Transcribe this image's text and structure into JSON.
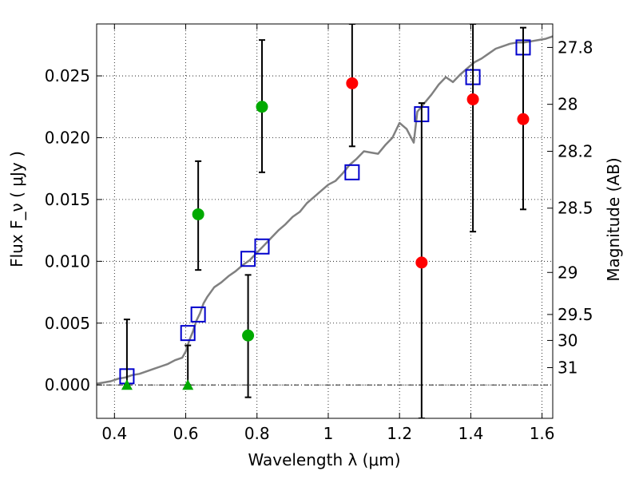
{
  "chart_data": {
    "type": "scatter",
    "xlabel": "Wavelength  λ (μm)",
    "ylabel": "Flux  F_ν  ( μJy )",
    "ylabel_right": "Magnitude (AB)",
    "xlim": [
      0.35,
      1.63
    ],
    "ylim": [
      -0.0027,
      0.0292
    ],
    "x_ticks": [
      0.4,
      0.6,
      0.8,
      1.0,
      1.2,
      1.4,
      1.6
    ],
    "x_tick_labels": [
      "0.4",
      "0.6",
      "0.8",
      "1",
      "1.2",
      "1.4",
      "1.6"
    ],
    "y_ticks": [
      0.0,
      0.005,
      0.01,
      0.015,
      0.02,
      0.025
    ],
    "y_tick_labels": [
      "0.000",
      "0.005",
      "0.010",
      "0.015",
      "0.020",
      "0.025"
    ],
    "right_ticks": [
      {
        "label": "27.8",
        "flux": 0.0273
      },
      {
        "label": "28",
        "flux": 0.0227
      },
      {
        "label": "28.2",
        "flux": 0.0189
      },
      {
        "label": "28.5",
        "flux": 0.0143
      },
      {
        "label": "29",
        "flux": 0.0091
      },
      {
        "label": "29.5",
        "flux": 0.0057
      },
      {
        "label": "30",
        "flux": 0.0036
      },
      {
        "label": "31",
        "flux": 0.0014
      }
    ],
    "grid": true,
    "zero_line": true,
    "series": [
      {
        "kind": "line",
        "color": "#808080",
        "x": [
          0.35,
          0.37,
          0.39,
          0.41,
          0.43,
          0.45,
          0.47,
          0.49,
          0.51,
          0.53,
          0.55,
          0.57,
          0.59,
          0.6,
          0.61,
          0.62,
          0.63,
          0.64,
          0.65,
          0.66,
          0.68,
          0.7,
          0.72,
          0.74,
          0.76,
          0.78,
          0.8,
          0.82,
          0.84,
          0.86,
          0.88,
          0.9,
          0.92,
          0.94,
          0.96,
          0.98,
          1.0,
          1.02,
          1.04,
          1.06,
          1.08,
          1.1,
          1.12,
          1.14,
          1.16,
          1.18,
          1.2,
          1.22,
          1.24,
          1.25,
          1.27,
          1.29,
          1.31,
          1.33,
          1.35,
          1.37,
          1.39,
          1.41,
          1.43,
          1.45,
          1.47,
          1.49,
          1.51,
          1.53,
          1.55,
          1.57,
          1.59,
          1.61,
          1.63
        ],
        "y": [
          0.0001,
          0.0002,
          0.0003,
          0.0005,
          0.0006,
          0.0008,
          0.0009,
          0.0011,
          0.0013,
          0.0015,
          0.0017,
          0.002,
          0.0022,
          0.0027,
          0.0036,
          0.0043,
          0.0052,
          0.0058,
          0.0066,
          0.0071,
          0.0079,
          0.0083,
          0.0088,
          0.0092,
          0.0097,
          0.0101,
          0.0107,
          0.0113,
          0.0119,
          0.0125,
          0.013,
          0.0136,
          0.014,
          0.0147,
          0.0152,
          0.0157,
          0.0162,
          0.0165,
          0.0171,
          0.0178,
          0.0183,
          0.0189,
          0.0188,
          0.0187,
          0.0194,
          0.02,
          0.0212,
          0.0207,
          0.0196,
          0.0221,
          0.0228,
          0.0235,
          0.0243,
          0.0249,
          0.0245,
          0.0251,
          0.0256,
          0.0261,
          0.0264,
          0.0268,
          0.0272,
          0.0274,
          0.0276,
          0.0277,
          0.0277,
          0.0278,
          0.0279,
          0.028,
          0.0282
        ]
      },
      {
        "kind": "points",
        "marker": "square-open",
        "color": "#0000cc",
        "x": [
          0.435,
          0.606,
          0.635,
          0.775,
          0.814,
          1.067,
          1.262,
          1.406,
          1.547
        ],
        "y": [
          0.0007,
          0.0042,
          0.0057,
          0.0102,
          0.0112,
          0.0172,
          0.0219,
          0.0249,
          0.0273
        ]
      },
      {
        "kind": "points",
        "marker": "circle",
        "color": "#00aa00",
        "x": [
          0.635,
          0.775,
          0.814
        ],
        "y": [
          0.0138,
          0.004,
          0.0225
        ],
        "yerr": [
          [
            0.0093,
            0.0181
          ],
          [
            -0.001,
            0.0089
          ],
          [
            0.0172,
            0.0279
          ]
        ]
      },
      {
        "kind": "points",
        "marker": "triangle-up",
        "color": "#00aa00",
        "x": [
          0.435,
          0.606
        ],
        "y": [
          0.0,
          0.0
        ],
        "yerr": [
          [
            0.0,
            0.0053
          ],
          [
            0.0,
            0.0032
          ]
        ]
      },
      {
        "kind": "points",
        "marker": "circle",
        "color": "#ff0000",
        "x": [
          1.067,
          1.262,
          1.406,
          1.547
        ],
        "y": [
          0.0244,
          0.0099,
          0.0231,
          0.0215
        ],
        "yerr": [
          [
            0.0193,
            0.0292
          ],
          [
            -0.0027,
            0.0228
          ],
          [
            0.0124,
            0.0292
          ],
          [
            0.0142,
            0.0289
          ]
        ]
      }
    ]
  }
}
